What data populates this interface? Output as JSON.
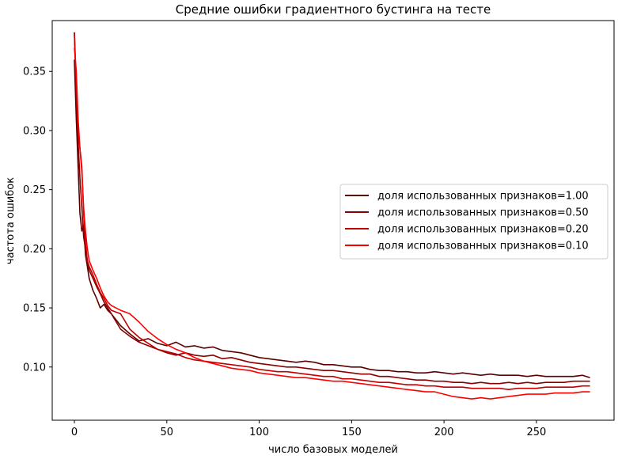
{
  "chart_data": {
    "type": "line",
    "title": "Средние ошибки градиентного бустинга на тесте",
    "xlabel": "число базовых моделей",
    "ylabel": "частота ошибок",
    "xlim": [
      -12,
      292
    ],
    "ylim": [
      0.055,
      0.393
    ],
    "xticks": [
      0,
      50,
      100,
      150,
      200,
      250
    ],
    "xtick_labels": [
      "0",
      "50",
      "100",
      "150",
      "200",
      "250"
    ],
    "yticks": [
      0.1,
      0.15,
      0.2,
      0.25,
      0.3,
      0.35
    ],
    "ytick_labels": [
      "0.10",
      "0.15",
      "0.20",
      "0.25",
      "0.30",
      "0.35"
    ],
    "grid": false,
    "legend_position": "center-right",
    "series": [
      {
        "name": "доля использованных признаков=1.00",
        "color": "#5a0000",
        "points": [
          [
            0,
            0.36
          ],
          [
            1,
            0.31
          ],
          [
            2,
            0.27
          ],
          [
            3,
            0.23
          ],
          [
            4,
            0.215
          ],
          [
            5,
            0.22
          ],
          [
            6,
            0.195
          ],
          [
            7,
            0.185
          ],
          [
            8,
            0.175
          ],
          [
            10,
            0.165
          ],
          [
            12,
            0.158
          ],
          [
            14,
            0.15
          ],
          [
            16,
            0.153
          ],
          [
            18,
            0.148
          ],
          [
            20,
            0.145
          ],
          [
            25,
            0.135
          ],
          [
            30,
            0.128
          ],
          [
            35,
            0.122
          ],
          [
            40,
            0.124
          ],
          [
            45,
            0.12
          ],
          [
            50,
            0.118
          ],
          [
            55,
            0.121
          ],
          [
            60,
            0.117
          ],
          [
            65,
            0.118
          ],
          [
            70,
            0.116
          ],
          [
            75,
            0.117
          ],
          [
            80,
            0.114
          ],
          [
            85,
            0.113
          ],
          [
            90,
            0.112
          ],
          [
            95,
            0.11
          ],
          [
            100,
            0.108
          ],
          [
            105,
            0.107
          ],
          [
            110,
            0.106
          ],
          [
            115,
            0.105
          ],
          [
            120,
            0.104
          ],
          [
            125,
            0.105
          ],
          [
            130,
            0.104
          ],
          [
            135,
            0.102
          ],
          [
            140,
            0.102
          ],
          [
            145,
            0.101
          ],
          [
            150,
            0.1
          ],
          [
            155,
            0.1
          ],
          [
            160,
            0.098
          ],
          [
            165,
            0.097
          ],
          [
            170,
            0.097
          ],
          [
            175,
            0.096
          ],
          [
            180,
            0.096
          ],
          [
            185,
            0.095
          ],
          [
            190,
            0.095
          ],
          [
            195,
            0.096
          ],
          [
            200,
            0.095
          ],
          [
            205,
            0.094
          ],
          [
            210,
            0.095
          ],
          [
            215,
            0.094
          ],
          [
            220,
            0.093
          ],
          [
            225,
            0.094
          ],
          [
            230,
            0.093
          ],
          [
            235,
            0.093
          ],
          [
            240,
            0.093
          ],
          [
            245,
            0.092
          ],
          [
            250,
            0.093
          ],
          [
            255,
            0.092
          ],
          [
            260,
            0.092
          ],
          [
            265,
            0.092
          ],
          [
            270,
            0.092
          ],
          [
            275,
            0.093
          ],
          [
            279,
            0.091
          ]
        ]
      },
      {
        "name": "доля использованных признаков=0.50",
        "color": "#8b0000",
        "points": [
          [
            0,
            0.383
          ],
          [
            1,
            0.33
          ],
          [
            2,
            0.29
          ],
          [
            3,
            0.26
          ],
          [
            4,
            0.235
          ],
          [
            5,
            0.21
          ],
          [
            6,
            0.2
          ],
          [
            7,
            0.19
          ],
          [
            8,
            0.182
          ],
          [
            10,
            0.175
          ],
          [
            12,
            0.168
          ],
          [
            14,
            0.162
          ],
          [
            16,
            0.155
          ],
          [
            18,
            0.15
          ],
          [
            20,
            0.145
          ],
          [
            25,
            0.132
          ],
          [
            30,
            0.126
          ],
          [
            35,
            0.121
          ],
          [
            40,
            0.118
          ],
          [
            45,
            0.115
          ],
          [
            50,
            0.112
          ],
          [
            55,
            0.11
          ],
          [
            60,
            0.112
          ],
          [
            65,
            0.11
          ],
          [
            70,
            0.109
          ],
          [
            75,
            0.11
          ],
          [
            80,
            0.107
          ],
          [
            85,
            0.108
          ],
          [
            90,
            0.106
          ],
          [
            95,
            0.104
          ],
          [
            100,
            0.103
          ],
          [
            105,
            0.102
          ],
          [
            110,
            0.101
          ],
          [
            115,
            0.1
          ],
          [
            120,
            0.1
          ],
          [
            125,
            0.099
          ],
          [
            130,
            0.098
          ],
          [
            135,
            0.097
          ],
          [
            140,
            0.097
          ],
          [
            145,
            0.096
          ],
          [
            150,
            0.095
          ],
          [
            155,
            0.094
          ],
          [
            160,
            0.094
          ],
          [
            165,
            0.092
          ],
          [
            170,
            0.092
          ],
          [
            175,
            0.091
          ],
          [
            180,
            0.09
          ],
          [
            185,
            0.089
          ],
          [
            190,
            0.089
          ],
          [
            195,
            0.088
          ],
          [
            200,
            0.088
          ],
          [
            205,
            0.087
          ],
          [
            210,
            0.087
          ],
          [
            215,
            0.086
          ],
          [
            220,
            0.087
          ],
          [
            225,
            0.086
          ],
          [
            230,
            0.086
          ],
          [
            235,
            0.087
          ],
          [
            240,
            0.086
          ],
          [
            245,
            0.087
          ],
          [
            250,
            0.086
          ],
          [
            255,
            0.087
          ],
          [
            260,
            0.087
          ],
          [
            265,
            0.087
          ],
          [
            270,
            0.088
          ],
          [
            275,
            0.088
          ],
          [
            279,
            0.088
          ]
        ]
      },
      {
        "name": "доля использованных признаков=0.20",
        "color": "#c00000",
        "points": [
          [
            0,
            0.383
          ],
          [
            1,
            0.34
          ],
          [
            2,
            0.3
          ],
          [
            3,
            0.285
          ],
          [
            4,
            0.27
          ],
          [
            5,
            0.23
          ],
          [
            6,
            0.205
          ],
          [
            7,
            0.19
          ],
          [
            8,
            0.185
          ],
          [
            10,
            0.178
          ],
          [
            12,
            0.17
          ],
          [
            14,
            0.163
          ],
          [
            16,
            0.158
          ],
          [
            18,
            0.152
          ],
          [
            20,
            0.148
          ],
          [
            25,
            0.145
          ],
          [
            30,
            0.132
          ],
          [
            35,
            0.125
          ],
          [
            40,
            0.12
          ],
          [
            45,
            0.115
          ],
          [
            50,
            0.113
          ],
          [
            55,
            0.111
          ],
          [
            60,
            0.108
          ],
          [
            65,
            0.106
          ],
          [
            70,
            0.105
          ],
          [
            75,
            0.104
          ],
          [
            80,
            0.103
          ],
          [
            85,
            0.102
          ],
          [
            90,
            0.101
          ],
          [
            95,
            0.1
          ],
          [
            100,
            0.098
          ],
          [
            105,
            0.097
          ],
          [
            110,
            0.096
          ],
          [
            115,
            0.096
          ],
          [
            120,
            0.095
          ],
          [
            125,
            0.094
          ],
          [
            130,
            0.093
          ],
          [
            135,
            0.092
          ],
          [
            140,
            0.092
          ],
          [
            145,
            0.09
          ],
          [
            150,
            0.09
          ],
          [
            155,
            0.089
          ],
          [
            160,
            0.088
          ],
          [
            165,
            0.087
          ],
          [
            170,
            0.087
          ],
          [
            175,
            0.086
          ],
          [
            180,
            0.085
          ],
          [
            185,
            0.085
          ],
          [
            190,
            0.084
          ],
          [
            195,
            0.084
          ],
          [
            200,
            0.083
          ],
          [
            205,
            0.083
          ],
          [
            210,
            0.083
          ],
          [
            215,
            0.082
          ],
          [
            220,
            0.082
          ],
          [
            225,
            0.082
          ],
          [
            230,
            0.082
          ],
          [
            235,
            0.081
          ],
          [
            240,
            0.082
          ],
          [
            245,
            0.082
          ],
          [
            250,
            0.082
          ],
          [
            255,
            0.083
          ],
          [
            260,
            0.083
          ],
          [
            265,
            0.083
          ],
          [
            270,
            0.083
          ],
          [
            275,
            0.084
          ],
          [
            279,
            0.084
          ]
        ]
      },
      {
        "name": "доля использованных признаков=0.10",
        "color": "#ff0000",
        "points": [
          [
            0,
            0.37
          ],
          [
            1,
            0.35
          ],
          [
            2,
            0.31
          ],
          [
            3,
            0.285
          ],
          [
            4,
            0.265
          ],
          [
            5,
            0.235
          ],
          [
            6,
            0.215
          ],
          [
            7,
            0.2
          ],
          [
            8,
            0.19
          ],
          [
            10,
            0.182
          ],
          [
            12,
            0.175
          ],
          [
            14,
            0.167
          ],
          [
            16,
            0.16
          ],
          [
            18,
            0.155
          ],
          [
            20,
            0.152
          ],
          [
            25,
            0.148
          ],
          [
            30,
            0.145
          ],
          [
            35,
            0.138
          ],
          [
            40,
            0.13
          ],
          [
            45,
            0.124
          ],
          [
            50,
            0.119
          ],
          [
            55,
            0.115
          ],
          [
            60,
            0.112
          ],
          [
            65,
            0.108
          ],
          [
            70,
            0.105
          ],
          [
            75,
            0.103
          ],
          [
            80,
            0.101
          ],
          [
            85,
            0.099
          ],
          [
            90,
            0.098
          ],
          [
            95,
            0.097
          ],
          [
            100,
            0.095
          ],
          [
            105,
            0.094
          ],
          [
            110,
            0.093
          ],
          [
            115,
            0.092
          ],
          [
            120,
            0.091
          ],
          [
            125,
            0.091
          ],
          [
            130,
            0.09
          ],
          [
            135,
            0.089
          ],
          [
            140,
            0.088
          ],
          [
            145,
            0.088
          ],
          [
            150,
            0.087
          ],
          [
            155,
            0.086
          ],
          [
            160,
            0.085
          ],
          [
            165,
            0.084
          ],
          [
            170,
            0.083
          ],
          [
            175,
            0.082
          ],
          [
            180,
            0.081
          ],
          [
            185,
            0.08
          ],
          [
            190,
            0.079
          ],
          [
            195,
            0.079
          ],
          [
            200,
            0.077
          ],
          [
            205,
            0.075
          ],
          [
            210,
            0.074
          ],
          [
            215,
            0.073
          ],
          [
            220,
            0.074
          ],
          [
            225,
            0.073
          ],
          [
            230,
            0.074
          ],
          [
            235,
            0.075
          ],
          [
            240,
            0.076
          ],
          [
            245,
            0.077
          ],
          [
            250,
            0.077
          ],
          [
            255,
            0.077
          ],
          [
            260,
            0.078
          ],
          [
            265,
            0.078
          ],
          [
            270,
            0.078
          ],
          [
            275,
            0.079
          ],
          [
            279,
            0.079
          ]
        ]
      }
    ]
  }
}
